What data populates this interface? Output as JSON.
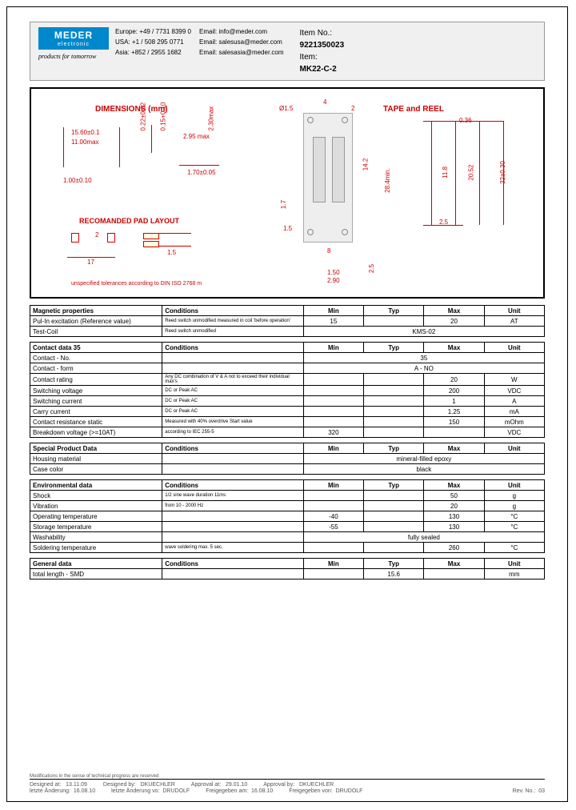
{
  "header": {
    "logo_text": "MEDER",
    "logo_sub": "electronic",
    "slogan": "products for tomorrow",
    "contacts": {
      "europe_label": "Europe:",
      "europe_phone": "+49 / 7731 8399 0",
      "usa_label": "USA:",
      "usa_phone": "+1 / 508 295 0771",
      "asia_label": "Asia:",
      "asia_phone": "+852 / 2955 1682",
      "email1_label": "Email:",
      "email1": "info@meder.com",
      "email2_label": "Email:",
      "email2": "salesusa@meder.com",
      "email3_label": "Email:",
      "email3": "salesasia@meder.com"
    },
    "item_no_label": "Item No.:",
    "item_no": "9221350023",
    "item_label": "Item:",
    "item": "MK22-C-2"
  },
  "diagram": {
    "dimensions_title": "DIMENSIONS (mm)",
    "tape_reel_title": "TAPE and REEL",
    "pad_layout_title": "RECOMANDED PAD LAYOUT",
    "tolerance_note": "unspecified tolerances according to DIN ISO 2768 m",
    "dims": {
      "d1": "15.60±0.1",
      "d2": "11.00max",
      "d3": "1.00±0.10",
      "d4": "0.22±0.02",
      "d5": "0.15+0.10",
      "d6": "2.95 max",
      "d7": "2.30max",
      "d8": "1.70±0.05",
      "d9": "17",
      "d10": "2",
      "d11": "1.5",
      "t1": "4",
      "t2": "2",
      "t3": "Ø1.5",
      "t4": "14.2",
      "t5": "28.4min.",
      "t6": "0.36",
      "t7": "11.8",
      "t8": "20.52",
      "t9": "32±0.30",
      "t10": "2.5",
      "t11": "1.5",
      "t12": "8",
      "t13": "1.50",
      "t14": "2.90",
      "t15": "2.5",
      "t16": "1.7"
    }
  },
  "tables": {
    "magnetic": {
      "title": "Magnetic properties",
      "headers": [
        "Conditions",
        "Min",
        "Typ",
        "Max",
        "Unit"
      ],
      "rows": [
        {
          "label": "Pul-In excitation (Reference value)",
          "cond": "Reed switch unmodified measured in coil 'before operation'",
          "min": "15",
          "typ": "",
          "max": "20",
          "unit": "AT"
        },
        {
          "label": "Test-Coil",
          "cond": "Reed switch unmodified",
          "span": "KMS-02"
        }
      ]
    },
    "contact": {
      "title": "Contact data  35",
      "headers": [
        "Conditions",
        "Min",
        "Typ",
        "Max",
        "Unit"
      ],
      "rows": [
        {
          "label": "Contact - No.",
          "cond": "",
          "span": "35"
        },
        {
          "label": "Contact - form",
          "cond": "",
          "span": "A - NO"
        },
        {
          "label": "Contact rating",
          "cond": "Any DC combination of V & A not to exceed their individual max's",
          "min": "",
          "typ": "",
          "max": "20",
          "unit": "W"
        },
        {
          "label": "Switching voltage",
          "cond": "DC or Peak AC",
          "min": "",
          "typ": "",
          "max": "200",
          "unit": "VDC"
        },
        {
          "label": "Switching current",
          "cond": "DC or Peak AC",
          "min": "",
          "typ": "",
          "max": "1",
          "unit": "A"
        },
        {
          "label": "Carry current",
          "cond": "DC or Peak AC",
          "min": "",
          "typ": "",
          "max": "1.25",
          "unit": "mA"
        },
        {
          "label": "Contact resistance static",
          "cond": "Measured with 40% overdrive Start value",
          "min": "",
          "typ": "",
          "max": "150",
          "unit": "mOhm"
        },
        {
          "label": "Breakdown voltage (>=10AT)",
          "cond": "according to IEC 255-5",
          "min": "320",
          "typ": "",
          "max": "",
          "unit": "VDC"
        }
      ]
    },
    "special": {
      "title": "Special Product Data",
      "headers": [
        "Conditions",
        "Min",
        "Typ",
        "Max",
        "Unit"
      ],
      "rows": [
        {
          "label": "Housing material",
          "cond": "",
          "span": "mineral-filled epoxy"
        },
        {
          "label": "Case color",
          "cond": "",
          "span": "black"
        }
      ]
    },
    "environmental": {
      "title": "Environmental data",
      "headers": [
        "Conditions",
        "Min",
        "Typ",
        "Max",
        "Unit"
      ],
      "rows": [
        {
          "label": "Shock",
          "cond": "1/2 sine wave duration 11ms",
          "min": "",
          "typ": "",
          "max": "50",
          "unit": "g"
        },
        {
          "label": "Vibration",
          "cond": "from  10 - 2000 Hz",
          "min": "",
          "typ": "",
          "max": "20",
          "unit": "g"
        },
        {
          "label": "Operating temperature",
          "cond": "",
          "min": "-40",
          "typ": "",
          "max": "130",
          "unit": "°C"
        },
        {
          "label": "Storage temperature",
          "cond": "",
          "min": "-55",
          "typ": "",
          "max": "130",
          "unit": "°C"
        },
        {
          "label": "Washability",
          "cond": "",
          "span": "fully sealed"
        },
        {
          "label": "Soldering temperature",
          "cond": "wave soldering max. 5 sec.",
          "min": "",
          "typ": "",
          "max": "260",
          "unit": "°C"
        }
      ]
    },
    "general": {
      "title": "General data",
      "headers": [
        "Conditions",
        "Min",
        "Typ",
        "Max",
        "Unit"
      ],
      "rows": [
        {
          "label": "total length - SMD",
          "cond": "",
          "min": "",
          "typ": "15.6",
          "max": "",
          "unit": "mm"
        }
      ]
    }
  },
  "footer": {
    "mod_note": "Modifications in the sense of technical progress are reserved",
    "designed_at_label": "Designed at:",
    "designed_at": "13.11.09",
    "designed_by_label": "Designed by:",
    "designed_by": "DKUECHLER",
    "approval_at_label": "Approval at:",
    "approval_at": "29.01.10",
    "approval_by_label": "Approval by:",
    "approval_by": "DKUECHLER",
    "change_at_label": "letzte Änderung:",
    "change_at": "16.08.10",
    "change_by_label": "letzte Änderung vo:",
    "change_by": "DRUDOLF",
    "release_at_label": "Freigegeben am:",
    "release_at": "16.08.10",
    "release_by_label": "Freigegeben von:",
    "release_by": "DRUDOLF",
    "rev_label": "Rev. No.:",
    "rev": "03"
  }
}
